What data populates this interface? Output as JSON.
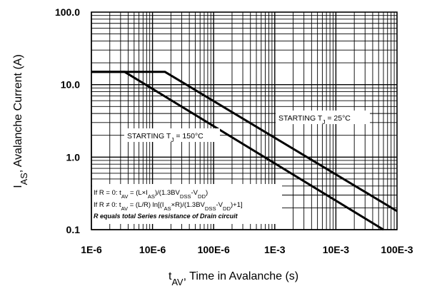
{
  "chart_data": {
    "type": "line",
    "x_scale": "log",
    "y_scale": "log",
    "xlim": [
      1e-06,
      0.1
    ],
    "ylim": [
      0.1,
      100
    ],
    "grid": true,
    "xlabel": {
      "main": "t",
      "sub": "AV",
      "rest": ", Time in Avalanche (s)"
    },
    "ylabel": {
      "main": "I",
      "sub": "AS",
      "rest": ", Avalanche Current (A)"
    },
    "x_ticks": [
      {
        "value": 1e-06,
        "label": "1E-6"
      },
      {
        "value": 1e-05,
        "label": "10E-6"
      },
      {
        "value": 0.0001,
        "label": "100E-6"
      },
      {
        "value": 0.001,
        "label": "1E-3"
      },
      {
        "value": 0.01,
        "label": "10E-3"
      },
      {
        "value": 0.1,
        "label": "100E-3"
      }
    ],
    "y_ticks": [
      {
        "value": 0.1,
        "label": "0.1"
      },
      {
        "value": 1,
        "label": "1.0"
      },
      {
        "value": 10,
        "label": "10.0"
      },
      {
        "value": 100,
        "label": "100.0"
      }
    ],
    "series": [
      {
        "name": "STARTING TJ = 25°C",
        "label_parts": [
          "STARTING T",
          "J",
          " = 25°C"
        ],
        "x": [
          1e-06,
          1.6e-05,
          0.1
        ],
        "y": [
          15,
          15,
          0.18
        ]
      },
      {
        "name": "STARTING TJ = 150°C",
        "label_parts": [
          "STARTING T",
          "J",
          " = 150°C"
        ],
        "x": [
          1e-06,
          3.5e-06,
          0.06
        ],
        "y": [
          15,
          15,
          0.1
        ]
      }
    ],
    "annotations": [
      {
        "text": [
          "If R = 0: t",
          "AV",
          " = (L×I",
          "AS",
          ")/(1.3BV",
          "DSS",
          "-V",
          "DD",
          ")"
        ]
      },
      {
        "text": [
          "If R ≠ 0: t",
          "AV",
          " = (L/R) ln[(I",
          "AS",
          "×R)/(1.3BV",
          "DSS",
          "-V",
          "DD",
          ")+1]"
        ]
      },
      {
        "text": [
          "R equals total Series resistance of Drain circuit"
        ]
      }
    ]
  }
}
